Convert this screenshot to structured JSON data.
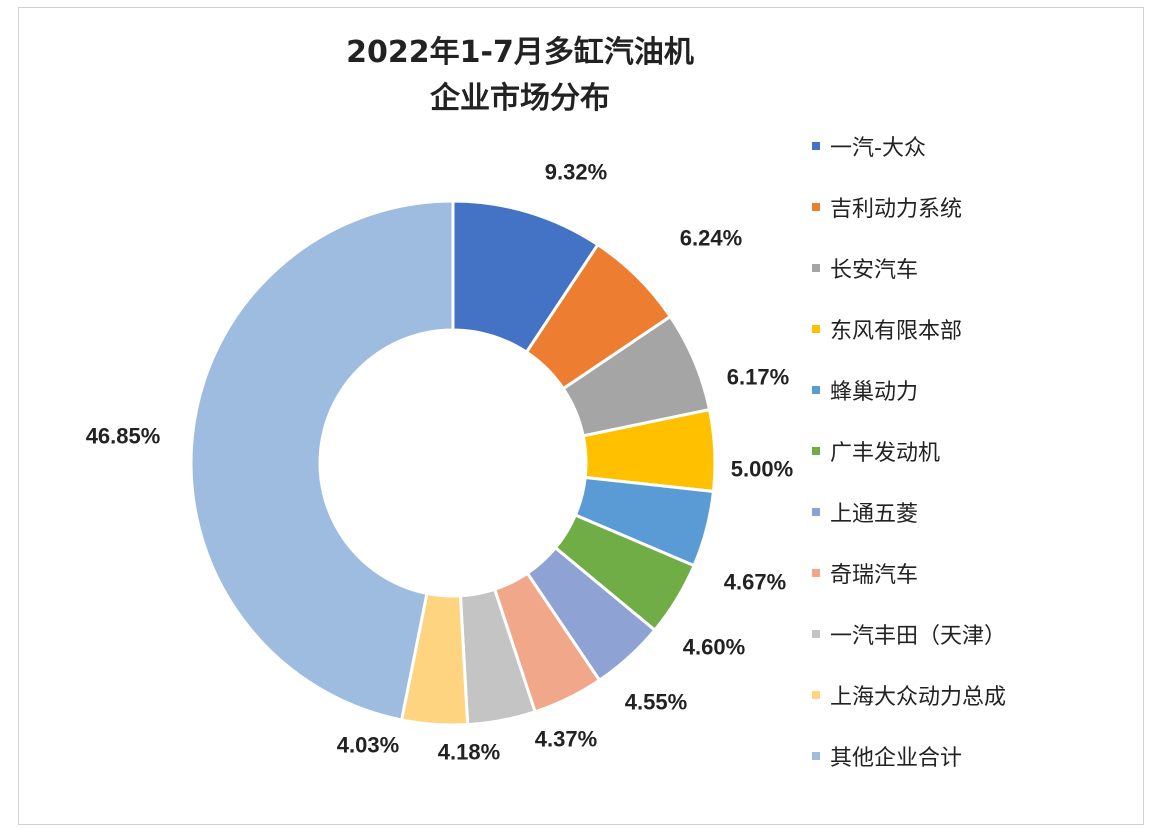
{
  "chart_data": {
    "type": "pie",
    "variant": "donut",
    "title_lines": [
      "2022年1-7月多缸汽油机",
      "企业市场分布"
    ],
    "categories": [
      "一汽-大众",
      "吉利动力系统",
      "长安汽车",
      "东风有限本部",
      "蜂巢动力",
      "广丰发动机",
      "上通五菱",
      "奇瑞汽车",
      "一汽丰田（天津）",
      "上海大众动力总成",
      "其他企业合计"
    ],
    "values": [
      9.32,
      6.24,
      6.17,
      5.0,
      4.67,
      4.6,
      4.55,
      4.37,
      4.18,
      4.03,
      46.85
    ],
    "data_labels": [
      "9.32%",
      "6.24%",
      "6.17%",
      "5.00%",
      "4.67%",
      "4.60%",
      "4.55%",
      "4.37%",
      "4.18%",
      "4.03%",
      "46.85%"
    ],
    "colors": [
      "#4472C4",
      "#ED7D31",
      "#A5A5A5",
      "#FFC000",
      "#5B9BD5",
      "#70AD47",
      "#8FA2D4",
      "#F1A78A",
      "#C4C4C4",
      "#FFD480",
      "#9DBCE0"
    ],
    "legend_position": "right",
    "start_angle": "12 o'clock",
    "direction": "clockwise"
  }
}
